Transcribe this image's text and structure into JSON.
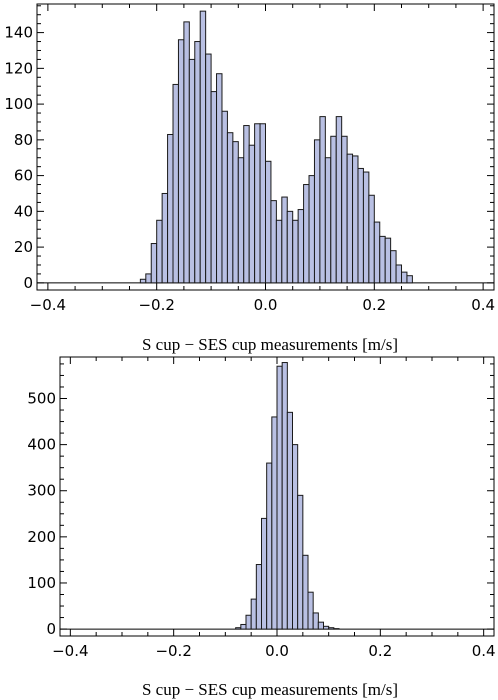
{
  "chart_data": [
    {
      "type": "bar",
      "xlabel": "S cup − SES cup measurements [m/s]",
      "xlim": [
        -0.42,
        0.42
      ],
      "ylim": [
        -4,
        156
      ],
      "x_ticks": [
        -0.4,
        -0.2,
        0.0,
        0.2,
        0.4
      ],
      "x_tick_labels": [
        "−0.4",
        "−0.2",
        "0.0",
        "0.2",
        "0.4"
      ],
      "y_ticks": [
        0,
        20,
        40,
        60,
        80,
        100,
        120,
        140
      ],
      "y_tick_labels": [
        "0",
        "20",
        "40",
        "60",
        "80",
        "100",
        "120",
        "140"
      ],
      "bin_width": 0.01,
      "bin_start": -0.23,
      "values": [
        2,
        5,
        22,
        35,
        50,
        83,
        111,
        136,
        146,
        125,
        135,
        152,
        128,
        107,
        117,
        96,
        84,
        79,
        70,
        88,
        77,
        89,
        89,
        68,
        46,
        35,
        48,
        40,
        35,
        41,
        55,
        60,
        80,
        93,
        70,
        82,
        93,
        82,
        72,
        71,
        64,
        62,
        49,
        34,
        26,
        25,
        18,
        10,
        6,
        4
      ]
    },
    {
      "type": "bar",
      "xlabel": "S cup − SES cup measurements [m/s]",
      "xlim": [
        -0.42,
        0.42
      ],
      "ylim": [
        -15,
        590
      ],
      "x_ticks": [
        -0.4,
        -0.2,
        0.0,
        0.2,
        0.4
      ],
      "x_tick_labels": [
        "−0.4",
        "−0.2",
        "0.0",
        "0.2",
        "0.4"
      ],
      "y_ticks": [
        0,
        100,
        200,
        300,
        400,
        500
      ],
      "y_tick_labels": [
        "0",
        "100",
        "200",
        "300",
        "400",
        "500"
      ],
      "bin_width": 0.01,
      "bin_start": -0.08,
      "values": [
        3,
        10,
        30,
        65,
        140,
        240,
        360,
        460,
        570,
        578,
        470,
        400,
        290,
        160,
        80,
        35,
        15,
        6,
        3,
        1
      ]
    }
  ]
}
